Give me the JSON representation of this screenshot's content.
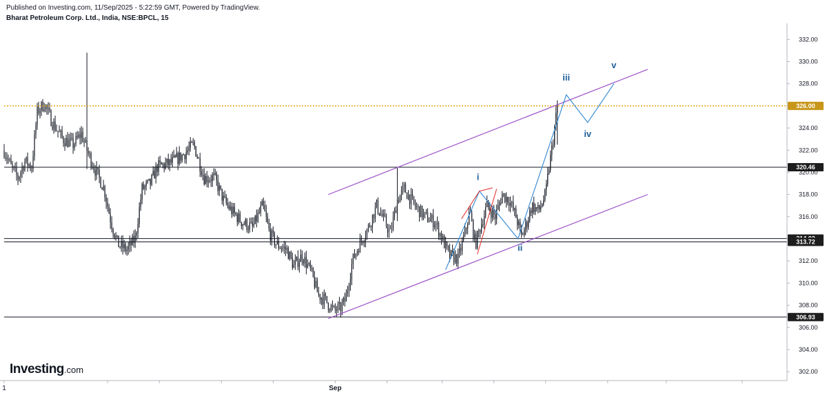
{
  "header": {
    "published": "Published on Investing.com, 11/Sep/2025 - 5:22:59 GMT, Powered by TradingView.",
    "symbol": "Bharat Petroleum Corp. Ltd., India, NSE:BPCL, 15"
  },
  "logo": {
    "name": "Investing",
    "suffix": ".com"
  },
  "colors": {
    "candle": "#131722",
    "channel": "#9b4fc8",
    "wave": "#3c8fd6",
    "wave_label": "#1f5f99",
    "sub_wave": "#e53935",
    "resistance": "#e6a817",
    "level_line": "#131722",
    "level_label_bg": "#1d1d1d",
    "resistance_label_bg": "#c8961a"
  },
  "chart_data": {
    "type": "candlestick",
    "title": "Bharat Petroleum Corp. Ltd., India, NSE:BPCL, 15",
    "ylim": [
      301.2,
      333.2
    ],
    "y_ticks": [
      302,
      304,
      306,
      308,
      310,
      312,
      314,
      316,
      318,
      320,
      322,
      324,
      326,
      328,
      330,
      332
    ],
    "y_tick_labels": [
      "302.00",
      "304.00",
      "306.00",
      "308.00",
      "310.00",
      "312.00",
      "314.00",
      "316.00",
      "318.00",
      "320.00",
      "322.00",
      "324.00",
      "326.00",
      "328.00",
      "330.00",
      "332.00"
    ],
    "x_labels": [
      {
        "label": "1",
        "bar": 0
      },
      {
        "label": "Sep",
        "bar": 480
      }
    ],
    "x_tick_bars": [
      0,
      150,
      225,
      315,
      390,
      480,
      555,
      635,
      710,
      785,
      875,
      960,
      1070
    ],
    "bar_count": 790,
    "x_range_bars": [
      0,
      1135
    ],
    "price_path": [
      [
        0,
        322.0
      ],
      [
        10,
        320.5
      ],
      [
        20,
        319.5
      ],
      [
        30,
        321.0
      ],
      [
        40,
        320.5
      ],
      [
        48,
        325.5
      ],
      [
        58,
        326.2
      ],
      [
        70,
        324.5
      ],
      [
        85,
        323.0
      ],
      [
        100,
        322.5
      ],
      [
        112,
        323.5
      ],
      [
        120,
        322.0
      ],
      [
        130,
        320.5
      ],
      [
        145,
        318.5
      ],
      [
        155,
        315.5
      ],
      [
        165,
        313.5
      ],
      [
        178,
        313.0
      ],
      [
        190,
        314.0
      ],
      [
        200,
        318.5
      ],
      [
        212,
        319.0
      ],
      [
        222,
        320.5
      ],
      [
        240,
        320.8
      ],
      [
        258,
        321.5
      ],
      [
        275,
        322.5
      ],
      [
        290,
        319.5
      ],
      [
        305,
        319.5
      ],
      [
        318,
        317.5
      ],
      [
        330,
        316.5
      ],
      [
        345,
        315.5
      ],
      [
        360,
        315.0
      ],
      [
        375,
        317.0
      ],
      [
        385,
        314.5
      ],
      [
        395,
        313.5
      ],
      [
        410,
        313.0
      ],
      [
        420,
        311.5
      ],
      [
        432,
        312.5
      ],
      [
        445,
        311.0
      ],
      [
        455,
        309.0
      ],
      [
        465,
        308.5
      ],
      [
        478,
        307.5
      ],
      [
        488,
        307.8
      ],
      [
        495,
        308.5
      ],
      [
        505,
        312.0
      ],
      [
        515,
        313.5
      ],
      [
        528,
        315.0
      ],
      [
        540,
        317.0
      ],
      [
        552,
        315.5
      ],
      [
        560,
        314.5
      ],
      [
        570,
        317.5
      ],
      [
        580,
        318.5
      ],
      [
        595,
        317.0
      ],
      [
        610,
        316.0
      ],
      [
        625,
        315.5
      ],
      [
        635,
        314.0
      ],
      [
        645,
        312.5
      ],
      [
        658,
        312.2
      ],
      [
        668,
        314.5
      ],
      [
        675,
        316.5
      ],
      [
        683,
        313.5
      ],
      [
        690,
        315.0
      ],
      [
        700,
        317.0
      ],
      [
        712,
        316.0
      ],
      [
        722,
        318.0
      ],
      [
        732,
        317.5
      ],
      [
        742,
        316.0
      ],
      [
        750,
        314.2
      ],
      [
        758,
        315.5
      ],
      [
        765,
        317.0
      ],
      [
        775,
        316.5
      ],
      [
        785,
        318.0
      ],
      [
        790,
        320.5
      ],
      [
        795,
        322.5
      ],
      [
        802,
        326.0
      ]
    ],
    "key_bars": [
      {
        "bar": 120,
        "high": 330.8,
        "low": 320.3
      },
      {
        "bar": 488,
        "high": 307.8,
        "low": 306.9
      },
      {
        "bar": 570,
        "high": 320.4,
        "low": 315.6
      },
      {
        "bar": 802,
        "high": 326.5,
        "low": 322.5
      }
    ],
    "levels": [
      {
        "value": 326.0,
        "label": "326.00",
        "style": "dotted",
        "kind": "resistance"
      },
      {
        "value": 320.46,
        "label": "320.46",
        "style": "solid"
      },
      {
        "value": 314.02,
        "label": "314.02",
        "style": "solid"
      },
      {
        "value": 313.72,
        "label": "313.72",
        "style": "solid"
      },
      {
        "value": 306.93,
        "label": "306.93",
        "style": "solid"
      }
    ],
    "channel": {
      "upper": [
        [
          470,
          318.0
        ],
        [
          933,
          329.3
        ]
      ],
      "lower": [
        [
          470,
          306.8
        ],
        [
          933,
          318.0
        ]
      ]
    },
    "wave_path": [
      [
        640,
        311.2
      ],
      [
        689,
        318.3
      ],
      [
        745,
        314.0
      ],
      [
        815,
        327.0
      ],
      [
        846,
        324.5
      ],
      [
        884,
        328.0
      ]
    ],
    "sub_wave_segments": [
      [
        [
          663,
          315.8
        ],
        [
          689,
          318.3
        ],
        [
          708,
          318.6
        ]
      ],
      [
        [
          686,
          312.6
        ],
        [
          714,
          318.5
        ]
      ]
    ],
    "wave_labels": [
      {
        "text": "i",
        "bar": 687,
        "value": 319.3
      },
      {
        "text": "ii",
        "bar": 748,
        "value": 312.9
      },
      {
        "text": "iii",
        "bar": 815,
        "value": 328.3
      },
      {
        "text": "iv",
        "bar": 846,
        "value": 323.2
      },
      {
        "text": "v",
        "bar": 884,
        "value": 329.4
      }
    ]
  }
}
